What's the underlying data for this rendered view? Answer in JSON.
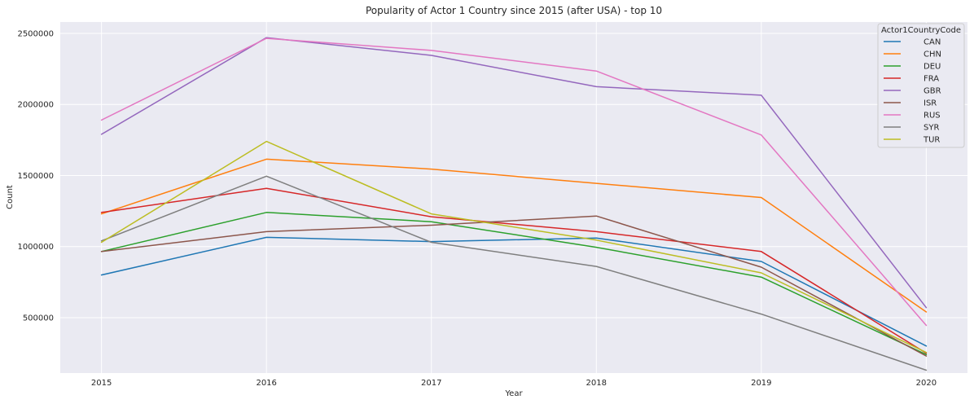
{
  "chart_data": {
    "type": "line",
    "title": "Popularity of Actor 1 Country since 2015 (after USA) - top 10",
    "xlabel": "Year",
    "ylabel": "Count",
    "x": [
      2015,
      2016,
      2017,
      2018,
      2019,
      2020
    ],
    "x_tick_labels": [
      "2015",
      "2016",
      "2017",
      "2018",
      "2019",
      "2020"
    ],
    "xlim": [
      2014.75,
      2020.25
    ],
    "ylim": [
      110000,
      2580000
    ],
    "y_ticks": [
      500000,
      1000000,
      1500000,
      2000000,
      2500000
    ],
    "y_tick_labels": [
      "500000",
      "1000000",
      "1500000",
      "2000000",
      "2500000"
    ],
    "grid": true,
    "legend": {
      "title": "Actor1CountryCode",
      "placement": "top-right"
    },
    "series": [
      {
        "name": "CAN",
        "color": "#1f77b4",
        "values": [
          800000,
          1065000,
          1035000,
          1060000,
          895000,
          300000
        ]
      },
      {
        "name": "CHN",
        "color": "#ff7f0e",
        "values": [
          1230000,
          1615000,
          1545000,
          1445000,
          1345000,
          540000
        ]
      },
      {
        "name": "DEU",
        "color": "#2ca02c",
        "values": [
          965000,
          1240000,
          1175000,
          995000,
          785000,
          240000
        ]
      },
      {
        "name": "FRA",
        "color": "#d62728",
        "values": [
          1240000,
          1410000,
          1210000,
          1105000,
          965000,
          250000
        ]
      },
      {
        "name": "GBR",
        "color": "#9467bd",
        "values": [
          1790000,
          2470000,
          2345000,
          2125000,
          2065000,
          570000
        ]
      },
      {
        "name": "ISR",
        "color": "#8c564b",
        "values": [
          965000,
          1105000,
          1150000,
          1215000,
          855000,
          230000
        ]
      },
      {
        "name": "RUS",
        "color": "#e377c2",
        "values": [
          1890000,
          2465000,
          2380000,
          2235000,
          1785000,
          445000
        ]
      },
      {
        "name": "SYR",
        "color": "#7f7f7f",
        "values": [
          1040000,
          1495000,
          1030000,
          860000,
          525000,
          130000
        ]
      },
      {
        "name": "TUR",
        "color": "#bcbd22",
        "values": [
          1030000,
          1740000,
          1230000,
          1045000,
          815000,
          255000
        ]
      }
    ]
  }
}
